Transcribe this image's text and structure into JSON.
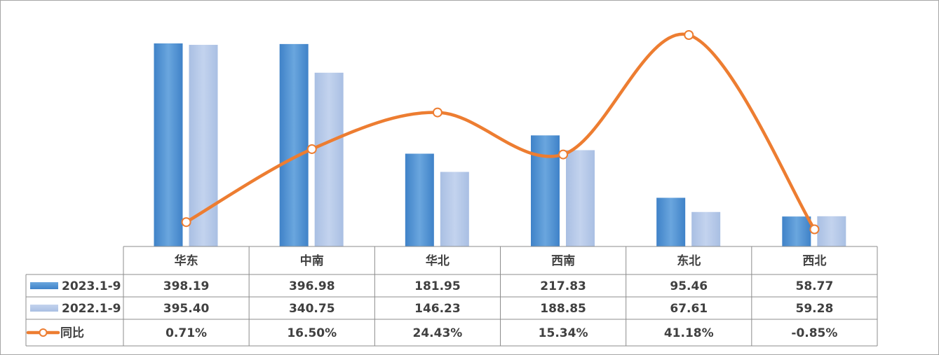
{
  "chart_data": {
    "type": "bar",
    "categories": [
      "华东",
      "中南",
      "华北",
      "西南",
      "东北",
      "西北"
    ],
    "series": [
      {
        "name": "2023.1-9",
        "kind": "bar",
        "color": "#5b9bd5",
        "values": [
          398.19,
          396.98,
          181.95,
          217.83,
          95.46,
          58.77
        ],
        "labels": [
          "398.19",
          "396.98",
          "181.95",
          "217.83",
          "95.46",
          "58.77"
        ]
      },
      {
        "name": "2022.1-9",
        "kind": "bar",
        "color": "#b4c7e7",
        "values": [
          395.4,
          340.75,
          146.23,
          188.85,
          67.61,
          59.28
        ],
        "labels": [
          "395.40",
          "340.75",
          "146.23",
          "188.85",
          "67.61",
          "59.28"
        ]
      },
      {
        "name": "同比",
        "kind": "line",
        "color": "#ed7d31",
        "values": [
          0.71,
          16.5,
          24.43,
          15.34,
          41.18,
          -0.85
        ],
        "labels": [
          "0.71%",
          "16.50%",
          "24.43%",
          "15.34%",
          "41.18%",
          "-0.85%"
        ]
      }
    ],
    "axes": {
      "primary_y": {
        "unit": "value",
        "range": [
          0,
          400
        ]
      },
      "secondary_y": {
        "unit": "percent",
        "range": [
          -2,
          42
        ]
      }
    },
    "legend_placement": "data-table-left",
    "data_table": true,
    "grid": false
  }
}
